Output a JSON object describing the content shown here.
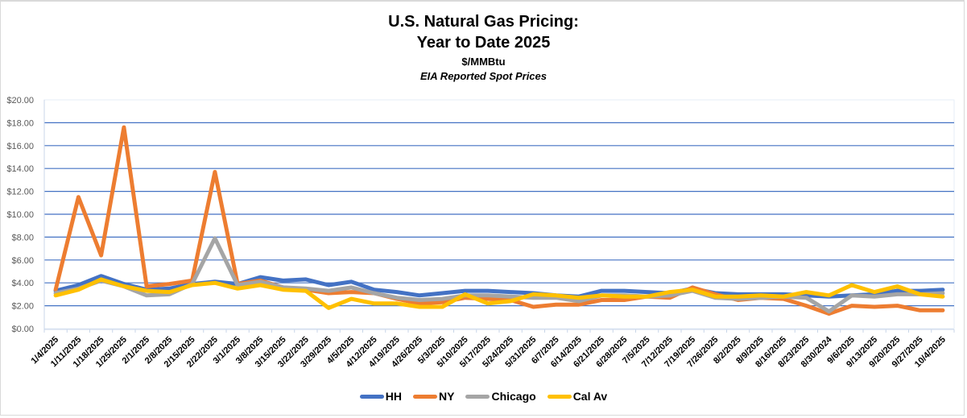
{
  "chart_data": {
    "type": "line",
    "title": "U.S. Natural Gas Pricing:",
    "title_line2": "Year to Date 2025",
    "subtitle": "$/MMBtu",
    "subtitle2": "EIA Reported Spot Prices",
    "xlabel": "",
    "ylabel": "",
    "ylim": [
      0,
      20
    ],
    "yticks": [
      0,
      2,
      4,
      6,
      8,
      10,
      12,
      14,
      16,
      18,
      20
    ],
    "ytick_labels": [
      "$0.00",
      "$2.00",
      "$4.00",
      "$6.00",
      "$8.00",
      "$10.00",
      "$12.00",
      "$14.00",
      "$16.00",
      "$18.00",
      "$20.00"
    ],
    "grid": true,
    "legend_position": "bottom",
    "categories": [
      "1/4/2025",
      "1/11/2025",
      "1/18/2025",
      "1/25/2025",
      "2/1/2025",
      "2/8/2025",
      "2/15/2025",
      "2/22/2025",
      "3/1/2025",
      "3/8/2025",
      "3/15/2025",
      "3/22/2025",
      "3/29/2025",
      "4/5/2025",
      "4/12/2025",
      "4/19/2025",
      "4/26/2025",
      "5/3/2025",
      "5/10/2025",
      "5/17/2025",
      "5/24/2025",
      "5/31/2025",
      "6/7/2025",
      "6/14/2025",
      "6/21/2025",
      "6/28/2025",
      "7/5/2025",
      "7/12/2025",
      "7/19/2025",
      "7/26/2025",
      "8/2/2025",
      "8/9/2025",
      "8/16/2025",
      "8/23/2025",
      "8/30/2024",
      "9/6/2025",
      "9/13/2025",
      "9/20/2025",
      "9/27/2025",
      "10/4/2025"
    ],
    "series": [
      {
        "name": "HH",
        "color": "#4472C4",
        "values": [
          3.3,
          3.8,
          4.6,
          3.9,
          3.4,
          3.5,
          3.9,
          4.1,
          3.9,
          4.5,
          4.2,
          4.3,
          3.8,
          4.1,
          3.4,
          3.2,
          2.9,
          3.1,
          3.3,
          3.3,
          3.2,
          3.1,
          2.9,
          2.8,
          3.3,
          3.3,
          3.2,
          3.1,
          3.5,
          3.1,
          3.0,
          3.0,
          3.0,
          2.9,
          2.8,
          2.9,
          3.0,
          3.3,
          3.3,
          3.4
        ]
      },
      {
        "name": "NY",
        "color": "#ED7D31",
        "values": [
          3.4,
          11.5,
          6.4,
          17.6,
          3.7,
          3.9,
          4.2,
          13.7,
          3.9,
          4.2,
          3.6,
          3.4,
          3.1,
          3.2,
          3.1,
          2.6,
          2.2,
          2.3,
          2.7,
          2.6,
          2.5,
          1.9,
          2.1,
          2.1,
          2.5,
          2.5,
          2.8,
          2.7,
          3.6,
          3.0,
          2.5,
          2.7,
          2.6,
          2.0,
          1.3,
          2.0,
          1.9,
          2.0,
          1.6,
          1.6
        ]
      },
      {
        "name": "Chicago",
        "color": "#A5A5A5",
        "values": [
          3.1,
          3.5,
          4.2,
          3.7,
          2.9,
          3.0,
          3.9,
          7.9,
          3.8,
          4.1,
          3.6,
          3.5,
          3.3,
          3.6,
          3.1,
          2.7,
          2.5,
          2.6,
          2.9,
          2.9,
          2.8,
          2.7,
          2.7,
          2.4,
          2.9,
          2.9,
          2.8,
          2.9,
          3.3,
          2.7,
          2.6,
          2.7,
          2.8,
          2.7,
          1.5,
          2.9,
          2.8,
          3.0,
          3.0,
          3.1
        ]
      },
      {
        "name": "Cal Av",
        "color": "#FFC000",
        "values": [
          2.9,
          3.4,
          4.3,
          3.7,
          3.3,
          3.2,
          3.8,
          4.0,
          3.5,
          3.8,
          3.4,
          3.3,
          1.8,
          2.6,
          2.2,
          2.2,
          1.9,
          1.9,
          3.0,
          2.2,
          2.4,
          3.0,
          2.9,
          2.7,
          2.9,
          2.8,
          2.8,
          3.2,
          3.4,
          2.8,
          2.8,
          2.9,
          2.8,
          3.2,
          2.9,
          3.8,
          3.2,
          3.7,
          3.0,
          2.8
        ]
      }
    ]
  }
}
